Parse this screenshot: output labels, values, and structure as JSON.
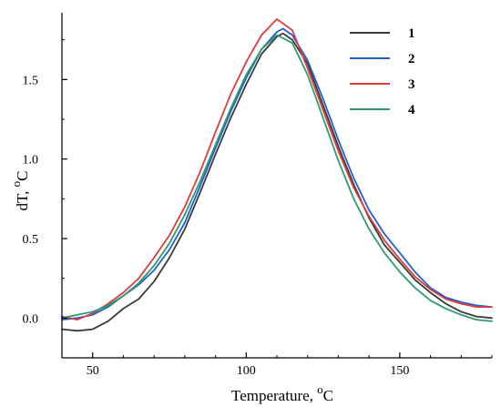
{
  "chart_data": {
    "type": "line",
    "xlabel": "Temperature, ",
    "xlabel_unit": "C",
    "xlabel_sup": "o",
    "ylabel": "dT, ",
    "ylabel_unit": "C",
    "ylabel_sup": "o",
    "xlim": [
      40,
      180
    ],
    "ylim": [
      -0.25,
      1.92
    ],
    "x_ticks": [
      50,
      100,
      150
    ],
    "x_tick_labels": [
      "50",
      "100",
      "150"
    ],
    "y_ticks": [
      0.0,
      0.5,
      1.0,
      1.5
    ],
    "y_tick_labels": [
      "0.0",
      "0.5",
      "1.0",
      "1.5"
    ],
    "grid": false,
    "legend_position": "top-right",
    "series": [
      {
        "name": "1",
        "color": "#3a3a3a",
        "x": [
          40,
          45,
          50,
          55,
          60,
          65,
          70,
          75,
          80,
          85,
          90,
          95,
          100,
          105,
          110,
          112,
          115,
          120,
          125,
          130,
          135,
          140,
          145,
          150,
          155,
          160,
          165,
          170,
          175,
          180
        ],
        "y": [
          -0.07,
          -0.08,
          -0.07,
          -0.02,
          0.06,
          0.12,
          0.23,
          0.38,
          0.56,
          0.79,
          1.03,
          1.26,
          1.47,
          1.66,
          1.77,
          1.79,
          1.75,
          1.6,
          1.34,
          1.08,
          0.84,
          0.63,
          0.46,
          0.35,
          0.24,
          0.16,
          0.09,
          0.04,
          0.01,
          0.0
        ]
      },
      {
        "name": "2",
        "color": "#1f5fd1",
        "x": [
          40,
          45,
          50,
          55,
          60,
          65,
          70,
          75,
          80,
          85,
          90,
          95,
          100,
          105,
          110,
          112,
          115,
          120,
          125,
          130,
          135,
          140,
          145,
          150,
          155,
          160,
          165,
          170,
          175,
          180
        ],
        "y": [
          -0.01,
          0.0,
          0.02,
          0.07,
          0.14,
          0.21,
          0.3,
          0.43,
          0.6,
          0.83,
          1.07,
          1.3,
          1.51,
          1.69,
          1.8,
          1.82,
          1.78,
          1.62,
          1.38,
          1.12,
          0.88,
          0.68,
          0.53,
          0.41,
          0.29,
          0.19,
          0.13,
          0.1,
          0.08,
          0.07
        ]
      },
      {
        "name": "3",
        "color": "#e03b3b",
        "x": [
          40,
          45,
          50,
          55,
          60,
          65,
          70,
          75,
          80,
          85,
          90,
          95,
          100,
          105,
          110,
          115,
          120,
          125,
          130,
          135,
          140,
          145,
          150,
          155,
          160,
          165,
          170,
          175,
          180
        ],
        "y": [
          0.01,
          -0.01,
          0.03,
          0.09,
          0.16,
          0.25,
          0.38,
          0.52,
          0.7,
          0.92,
          1.17,
          1.41,
          1.61,
          1.78,
          1.88,
          1.81,
          1.57,
          1.31,
          1.05,
          0.82,
          0.64,
          0.49,
          0.37,
          0.26,
          0.18,
          0.12,
          0.09,
          0.07,
          0.07
        ]
      },
      {
        "name": "4",
        "color": "#2e9b6a",
        "x": [
          40,
          45,
          50,
          55,
          60,
          65,
          70,
          75,
          80,
          85,
          90,
          95,
          100,
          105,
          110,
          115,
          120,
          125,
          130,
          135,
          140,
          145,
          150,
          155,
          160,
          165,
          170,
          175,
          180
        ],
        "y": [
          0.0,
          0.02,
          0.04,
          0.08,
          0.14,
          0.22,
          0.33,
          0.47,
          0.65,
          0.86,
          1.09,
          1.32,
          1.53,
          1.69,
          1.78,
          1.73,
          1.53,
          1.26,
          0.99,
          0.75,
          0.56,
          0.41,
          0.29,
          0.19,
          0.11,
          0.06,
          0.02,
          -0.01,
          -0.02
        ]
      }
    ]
  }
}
